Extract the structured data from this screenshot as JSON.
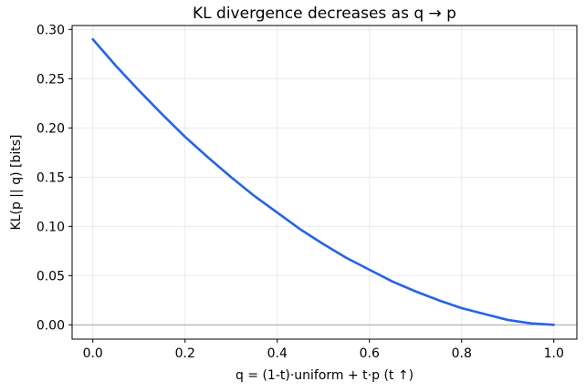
{
  "chart_data": {
    "type": "line",
    "title": "KL divergence decreases as q → p",
    "xlabel": "q = (1-t)·uniform + t·p  (t ↑)",
    "ylabel": "KL(p || q)  [bits]",
    "xlim": [
      -0.045,
      1.05
    ],
    "ylim": [
      -0.0145,
      0.304
    ],
    "xticks": [
      0.0,
      0.2,
      0.4,
      0.6,
      0.8,
      1.0
    ],
    "xtick_labels": [
      "0.0",
      "0.2",
      "0.4",
      "0.6",
      "0.8",
      "1.0"
    ],
    "yticks": [
      0.0,
      0.05,
      0.1,
      0.15,
      0.2,
      0.25,
      0.3
    ],
    "ytick_labels": [
      "0.00",
      "0.05",
      "0.10",
      "0.15",
      "0.20",
      "0.25",
      "0.30"
    ],
    "grid": true,
    "reference_line_y": 0,
    "series": [
      {
        "color": "#2563eb",
        "x": [
          0.0,
          0.05,
          0.1,
          0.15,
          0.2,
          0.25,
          0.3,
          0.35,
          0.4,
          0.45,
          0.5,
          0.55,
          0.6,
          0.65,
          0.7,
          0.75,
          0.8,
          0.85,
          0.9,
          0.95,
          1.0
        ],
        "y": [
          0.29,
          0.263,
          0.238,
          0.214,
          0.191,
          0.17,
          0.15,
          0.131,
          0.114,
          0.097,
          0.082,
          0.068,
          0.056,
          0.044,
          0.034,
          0.025,
          0.017,
          0.011,
          0.005,
          0.0015,
          0.0
        ]
      }
    ]
  }
}
